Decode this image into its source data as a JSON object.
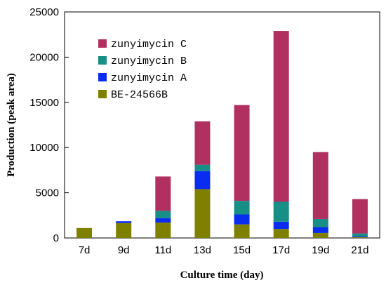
{
  "chart_data": {
    "type": "bar",
    "stacked": true,
    "title": "",
    "xlabel": "Culture time (day)",
    "ylabel": "Production (peak area)",
    "ylim": [
      0,
      25000
    ],
    "yticks": [
      0,
      5000,
      10000,
      15000,
      20000,
      25000
    ],
    "categories": [
      "7d",
      "9d",
      "11d",
      "13d",
      "15d",
      "17d",
      "19d",
      "21d"
    ],
    "grid": false,
    "legend_position": "top-left",
    "series": [
      {
        "name": "BE-24566B",
        "color": "#808000",
        "values": [
          1100,
          1650,
          1700,
          5400,
          1500,
          1000,
          550,
          100
        ]
      },
      {
        "name": "zunyimycin A",
        "color": "#0a2cf0",
        "values": [
          0,
          200,
          500,
          2000,
          1100,
          800,
          650,
          100
        ]
      },
      {
        "name": "zunyimycin B",
        "color": "#178f86",
        "values": [
          0,
          0,
          800,
          700,
          1500,
          2200,
          900,
          300
        ]
      },
      {
        "name": "zunyimycin C",
        "color": "#b03060",
        "values": [
          0,
          0,
          3800,
          4800,
          10600,
          18900,
          7400,
          3800
        ]
      }
    ]
  }
}
